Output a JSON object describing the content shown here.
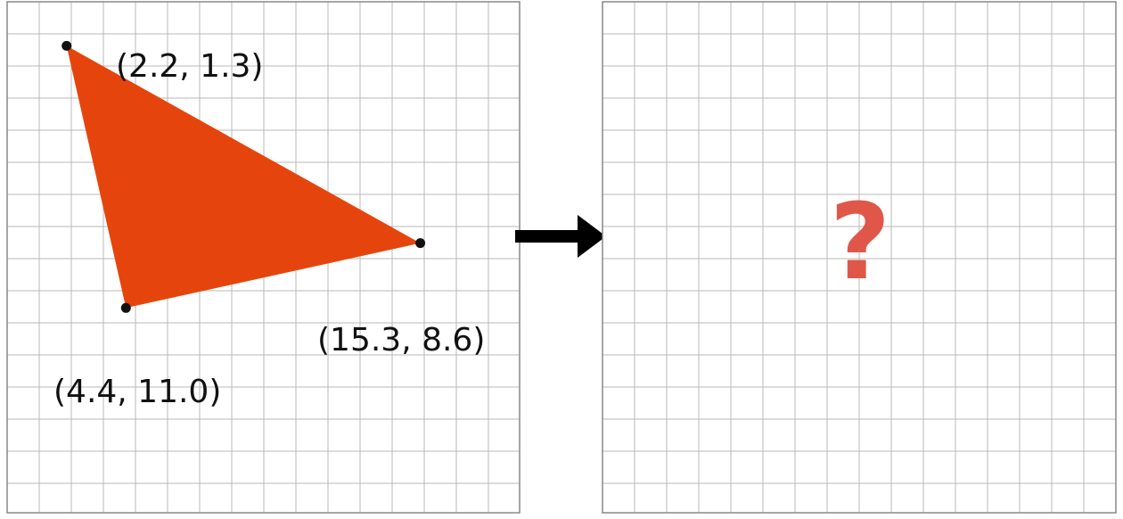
{
  "colors": {
    "triangle_fill": "#e5450d",
    "question_mark": "#e0574a",
    "grid_line": "#b8b8b8",
    "vertex_dot": "#111111",
    "arrow": "#000000"
  },
  "left_grid": {
    "vertices": [
      {
        "x": 2.2,
        "y": 1.3,
        "label": "(2.2, 1.3)"
      },
      {
        "x": 4.4,
        "y": 11.0,
        "label": "(4.4, 11.0)"
      },
      {
        "x": 15.3,
        "y": 8.6,
        "label": "(15.3, 8.6)"
      }
    ]
  },
  "arrow": {
    "icon": "right-arrow-icon"
  },
  "right_grid": {
    "question_mark": "?"
  }
}
